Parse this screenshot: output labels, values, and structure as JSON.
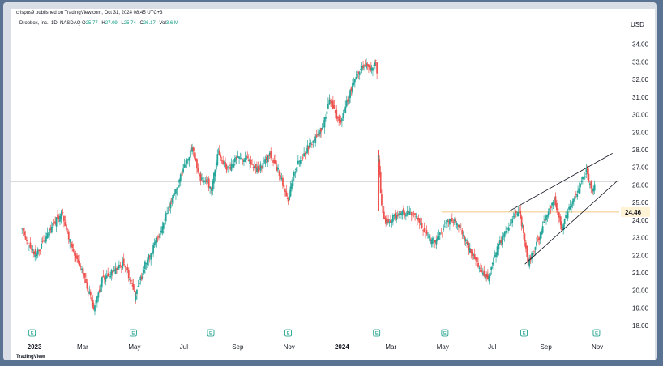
{
  "header": {
    "published": "crispus9 published on TradingView.com, Oct 31, 2024 08:45 UTC+3",
    "symbol": "Dropbox, Inc., 1D, NASDAQ",
    "ohlc": [
      {
        "key": "O",
        "value": "25.77"
      },
      {
        "key": "H",
        "value": "27.09"
      },
      {
        "key": "L",
        "value": "25.74"
      },
      {
        "key": "C",
        "value": "26.17"
      },
      {
        "key": "Vol",
        "value": "3.6 M"
      }
    ],
    "currency": "USD"
  },
  "price_tag": "24.46",
  "logo": "TradingView",
  "earnings_marker": "E",
  "colors": {
    "up": "#26a69a",
    "down": "#ef5350",
    "trendline": "#131722",
    "price_line": "#f0b65a",
    "price_tag_bg": "#fff3d6"
  },
  "chart_data": {
    "type": "candlestick",
    "title": "Dropbox, Inc., 1D, NASDAQ",
    "ylabel": "USD",
    "ylim": [
      17.5,
      35.0
    ],
    "y_ticks": [
      "18.00",
      "19.00",
      "20.00",
      "21.00",
      "22.00",
      "23.00",
      "24.00",
      "25.00",
      "26.00",
      "27.00",
      "28.00",
      "29.00",
      "30.00",
      "31.00",
      "32.00",
      "33.00",
      "34.00"
    ],
    "x_ticks": [
      "2023",
      "Mar",
      "May",
      "Jul",
      "Sep",
      "Nov",
      "2024",
      "Mar",
      "May",
      "Jul",
      "Sep",
      "Nov"
    ],
    "bold_x_ticks": [
      "2023",
      "2024"
    ],
    "x_range": [
      "2022-12-15",
      "2024-11-28"
    ],
    "x_tick_dates": [
      "2023-01-01",
      "2023-03-01",
      "2023-05-01",
      "2023-07-01",
      "2023-09-01",
      "2023-11-01",
      "2024-01-01",
      "2024-03-01",
      "2024-05-01",
      "2024-07-01",
      "2024-09-01",
      "2024-11-01"
    ],
    "earnings_dates": [
      "2023-01-01",
      "2023-05-01",
      "2023-08-01",
      "2023-11-01",
      "2024-02-14",
      "2024-05-05",
      "2024-08-07",
      "2024-11-01"
    ],
    "trend_path": [
      [
        "2022-12-20",
        23.4
      ],
      [
        "2023-01-05",
        22.0
      ],
      [
        "2023-01-20",
        23.2
      ],
      [
        "2023-02-05",
        24.5
      ],
      [
        "2023-02-12",
        23.2
      ],
      [
        "2023-02-22",
        21.8
      ],
      [
        "2023-03-03",
        20.9
      ],
      [
        "2023-03-15",
        19.0
      ],
      [
        "2023-03-25",
        20.6
      ],
      [
        "2023-04-10",
        21.2
      ],
      [
        "2023-04-20",
        21.6
      ],
      [
        "2023-05-01",
        20.2
      ],
      [
        "2023-05-04",
        19.7
      ],
      [
        "2023-05-15",
        21.5
      ],
      [
        "2023-05-30",
        23.0
      ],
      [
        "2023-06-15",
        25.0
      ],
      [
        "2023-06-28",
        26.7
      ],
      [
        "2023-07-10",
        28.0
      ],
      [
        "2023-07-20",
        26.3
      ],
      [
        "2023-08-02",
        25.9
      ],
      [
        "2023-08-10",
        28.0
      ],
      [
        "2023-08-20",
        26.8
      ],
      [
        "2023-09-01",
        27.6
      ],
      [
        "2023-09-15",
        27.5
      ],
      [
        "2023-09-25",
        26.8
      ],
      [
        "2023-10-10",
        27.7
      ],
      [
        "2023-10-20",
        26.8
      ],
      [
        "2023-11-01",
        25.2
      ],
      [
        "2023-11-10",
        27.0
      ],
      [
        "2023-11-25",
        28.2
      ],
      [
        "2023-12-10",
        29.0
      ],
      [
        "2023-12-20",
        30.8
      ],
      [
        "2024-01-01",
        29.5
      ],
      [
        "2024-01-15",
        31.5
      ],
      [
        "2024-01-30",
        32.9
      ],
      [
        "2024-02-08",
        32.6
      ],
      [
        "2024-02-13",
        33.2
      ],
      [
        "2024-02-15",
        32.2
      ]
    ],
    "gap_path": [
      [
        "2024-02-16",
        27.8
      ],
      [
        "2024-02-20",
        24.8
      ],
      [
        "2024-02-25",
        23.8
      ],
      [
        "2024-03-10",
        24.3
      ],
      [
        "2024-03-25",
        24.5
      ],
      [
        "2024-04-05",
        23.8
      ],
      [
        "2024-04-15",
        23.0
      ],
      [
        "2024-04-25",
        22.8
      ],
      [
        "2024-05-08",
        24.0
      ],
      [
        "2024-05-20",
        23.9
      ],
      [
        "2024-06-01",
        22.6
      ],
      [
        "2024-06-15",
        21.2
      ],
      [
        "2024-06-25",
        20.8
      ],
      [
        "2024-07-08",
        22.6
      ],
      [
        "2024-07-20",
        23.6
      ],
      [
        "2024-07-31",
        24.6
      ],
      [
        "2024-08-05",
        23.6
      ],
      [
        "2024-08-12",
        21.5
      ],
      [
        "2024-08-25",
        23.0
      ],
      [
        "2024-09-05",
        24.5
      ],
      [
        "2024-09-12",
        25.2
      ],
      [
        "2024-09-20",
        23.6
      ],
      [
        "2024-09-28",
        24.5
      ],
      [
        "2024-10-10",
        25.7
      ],
      [
        "2024-10-20",
        26.8
      ],
      [
        "2024-10-27",
        25.4
      ],
      [
        "2024-10-31",
        26.2
      ]
    ],
    "annotations": {
      "horizontal_line": 26.2,
      "price_line": 24.46,
      "channel_upper": [
        [
          "2024-07-20",
          24.5
        ],
        [
          "2024-11-20",
          27.8
        ]
      ],
      "channel_lower": [
        [
          "2024-08-08",
          21.5
        ],
        [
          "2024-11-25",
          26.2
        ]
      ]
    }
  }
}
